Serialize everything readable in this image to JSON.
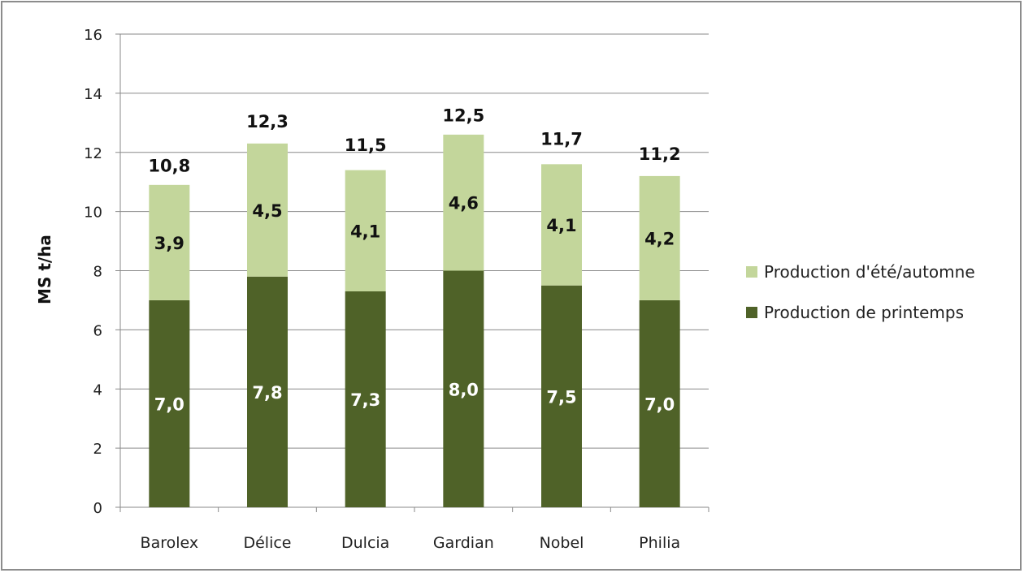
{
  "chart_data": {
    "type": "bar",
    "stacked": true,
    "categories": [
      "Barolex",
      "Délice",
      "Dulcia",
      "Gardian",
      "Nobel",
      "Philia"
    ],
    "series": [
      {
        "name": "Production de printemps",
        "values": [
          7.0,
          7.8,
          7.3,
          8.0,
          7.5,
          7.0
        ],
        "color": "#4f6228",
        "labels": [
          "7,0",
          "7,8",
          "7,3",
          "8,0",
          "7,5",
          "7,0"
        ],
        "label_color": "#ffffff"
      },
      {
        "name": "Production d'été/automne",
        "values": [
          3.9,
          4.5,
          4.1,
          4.6,
          4.1,
          4.2
        ],
        "color": "#c3d69b",
        "labels": [
          "3,9",
          "4,5",
          "4,1",
          "4,6",
          "4,1",
          "4,2"
        ],
        "label_color": "#111111"
      }
    ],
    "totals": [
      10.8,
      12.3,
      11.5,
      12.5,
      11.7,
      11.2
    ],
    "total_labels": [
      "10,8",
      "12,3",
      "11,5",
      "12,5",
      "11,7",
      "11,2"
    ],
    "yticks": [
      "0",
      "2",
      "4",
      "6",
      "8",
      "10",
      "12",
      "14",
      "16"
    ],
    "ylabel": "MS t/ha",
    "xlabel": "",
    "ylim": [
      0,
      16
    ],
    "grid": true,
    "legend": {
      "placement": "right",
      "entries": [
        "Production d'été/automne",
        "Production de printemps"
      ]
    }
  }
}
